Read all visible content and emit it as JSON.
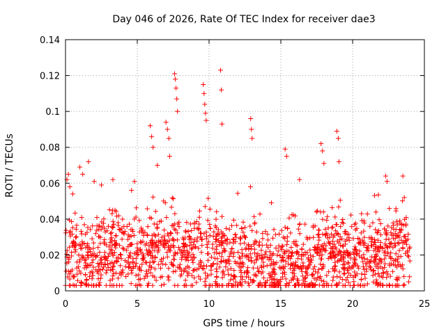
{
  "chart_data": {
    "type": "scatter",
    "title": "Day 046 of 2026, Rate Of TEC Index for receiver dae3",
    "xlabel": "GPS time / hours",
    "ylabel": "ROTI / TECUs",
    "xlim": [
      0,
      25
    ],
    "ylim": [
      0,
      0.14
    ],
    "x_ticks": [
      0,
      5,
      10,
      15,
      20,
      25
    ],
    "x_tick_labels": [
      "0",
      "5",
      "10",
      "15",
      "20",
      "25"
    ],
    "y_ticks": [
      0,
      0.02,
      0.04,
      0.06,
      0.08,
      0.1,
      0.12,
      0.14
    ],
    "y_tick_labels": [
      "0",
      "0.02",
      "0.04",
      "0.06",
      "0.08",
      "0.1",
      "0.12",
      "0.14"
    ],
    "grid": true,
    "marker": "+",
    "color": "#ff0000",
    "series": [
      {
        "name": "ROTI",
        "points": [
          [
            0.1,
            0.062
          ],
          [
            0.2,
            0.065
          ],
          [
            0.3,
            0.058
          ],
          [
            0.5,
            0.054
          ],
          [
            1.0,
            0.069
          ],
          [
            1.2,
            0.065
          ],
          [
            1.6,
            0.072
          ],
          [
            2.0,
            0.061
          ],
          [
            2.5,
            0.059
          ],
          [
            3.3,
            0.062
          ],
          [
            4.6,
            0.056
          ],
          [
            4.8,
            0.061
          ],
          [
            5.9,
            0.092
          ],
          [
            6.0,
            0.086
          ],
          [
            6.1,
            0.08
          ],
          [
            6.4,
            0.07
          ],
          [
            7.0,
            0.094
          ],
          [
            7.1,
            0.09
          ],
          [
            7.2,
            0.085
          ],
          [
            7.25,
            0.075
          ],
          [
            7.6,
            0.121
          ],
          [
            7.65,
            0.118
          ],
          [
            7.7,
            0.113
          ],
          [
            7.75,
            0.107
          ],
          [
            7.8,
            0.1
          ],
          [
            9.6,
            0.115
          ],
          [
            9.65,
            0.11
          ],
          [
            9.7,
            0.104
          ],
          [
            9.75,
            0.099
          ],
          [
            9.8,
            0.095
          ],
          [
            10.8,
            0.123
          ],
          [
            10.85,
            0.112
          ],
          [
            10.9,
            0.093
          ],
          [
            12.9,
            0.096
          ],
          [
            12.95,
            0.09
          ],
          [
            13.0,
            0.085
          ],
          [
            15.3,
            0.079
          ],
          [
            15.4,
            0.075
          ],
          [
            16.3,
            0.062
          ],
          [
            17.8,
            0.082
          ],
          [
            17.9,
            0.078
          ],
          [
            18.0,
            0.071
          ],
          [
            18.9,
            0.089
          ],
          [
            19.0,
            0.085
          ],
          [
            19.05,
            0.072
          ],
          [
            22.3,
            0.064
          ],
          [
            22.4,
            0.061
          ],
          [
            23.5,
            0.064
          ],
          [
            23.6,
            0.052
          ]
        ]
      }
    ],
    "annotations": [],
    "legend": "none"
  }
}
